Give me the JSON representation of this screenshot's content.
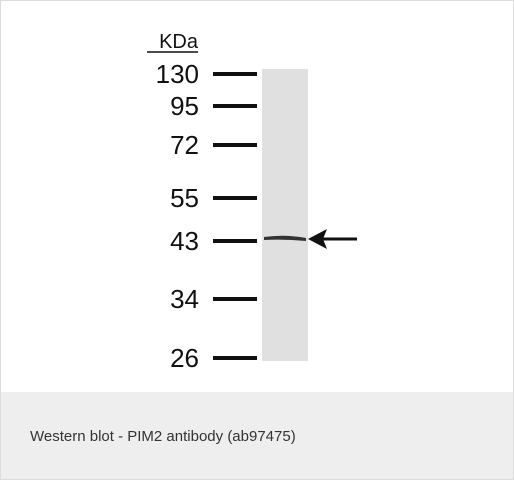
{
  "blot": {
    "unit_label": "KDa",
    "markers": [
      "130",
      "95",
      "72",
      "55",
      "43",
      "34",
      "26"
    ]
  },
  "caption": "Western blot - PIM2 antibody (ab97475)"
}
